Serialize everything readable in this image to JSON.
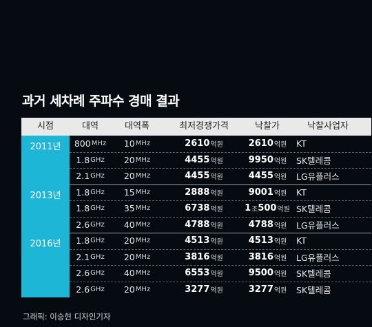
{
  "title": "과거 세차례 주파수 경매 결과",
  "headers": [
    "시점",
    "대역",
    "대역폭",
    "최저경쟁가격",
    "낙찰가",
    "낙찰사업자"
  ],
  "groups": [
    {
      "year": "2011년",
      "rows": [
        {
          "band": "800",
          "band_unit": "MHz",
          "width": "10",
          "width_unit": "MHz",
          "min_price": "2610",
          "price_unit": "억원",
          "winning_prefix": "",
          "winning_prefix_unit": "",
          "winning": "2610",
          "winning_unit": "억원",
          "bidder": "KT"
        },
        {
          "band": "1.8",
          "band_unit": "GHz",
          "width": "20",
          "width_unit": "MHz",
          "min_price": "4455",
          "price_unit": "억원",
          "winning_prefix": "",
          "winning_prefix_unit": "",
          "winning": "9950",
          "winning_unit": "억원",
          "bidder": "SK텔레콤"
        },
        {
          "band": "2.1",
          "band_unit": "GHz",
          "width": "20",
          "width_unit": "MHz",
          "min_price": "4455",
          "price_unit": "억원",
          "winning_prefix": "",
          "winning_prefix_unit": "",
          "winning": "4455",
          "winning_unit": "억원",
          "bidder": "LG유플러스"
        }
      ]
    },
    {
      "year": "2013년",
      "rows": [
        {
          "band": "1.8",
          "band_unit": "GHz",
          "width": "15",
          "width_unit": "MHz",
          "min_price": "2888",
          "price_unit": "억원",
          "winning_prefix": "",
          "winning_prefix_unit": "",
          "winning": "9001",
          "winning_unit": "억원",
          "bidder": "KT"
        },
        {
          "band": "1.8",
          "band_unit": "GHz",
          "width": "35",
          "width_unit": "MHz",
          "min_price": "6738",
          "price_unit": "억원",
          "winning_prefix": "1",
          "winning_prefix_unit": "조",
          "winning": "500",
          "winning_unit": "억원",
          "bidder": "SK텔레콤"
        },
        {
          "band": "2.6",
          "band_unit": "GHz",
          "width": "40",
          "width_unit": "MHz",
          "min_price": "4788",
          "price_unit": "억원",
          "winning_prefix": "",
          "winning_prefix_unit": "",
          "winning": "4788",
          "winning_unit": "억원",
          "bidder": "LG유플러스"
        }
      ]
    },
    {
      "year": "2016년",
      "rows": [
        {
          "band": "1.8",
          "band_unit": "GHz",
          "width": "20",
          "width_unit": "MHz",
          "min_price": "4513",
          "price_unit": "억원",
          "winning_prefix": "",
          "winning_prefix_unit": "",
          "winning": "4513",
          "winning_unit": "억원",
          "bidder": "KT"
        },
        {
          "band": "2.1",
          "band_unit": "GHz",
          "width": "20",
          "width_unit": "MHz",
          "min_price": "3816",
          "price_unit": "억원",
          "winning_prefix": "",
          "winning_prefix_unit": "",
          "winning": "3816",
          "winning_unit": "억원",
          "bidder": "LG유플러스"
        },
        {
          "band": "2.6",
          "band_unit": "GHz",
          "width": "40",
          "width_unit": "MHz",
          "min_price": "6553",
          "price_unit": "억원",
          "winning_prefix": "",
          "winning_prefix_unit": "",
          "winning": "9500",
          "winning_unit": "억원",
          "bidder": "SK텔레콤"
        },
        {
          "band": "2.6",
          "band_unit": "GHz",
          "width": "20",
          "width_unit": "MHz",
          "min_price": "3277",
          "price_unit": "억원",
          "winning_prefix": "",
          "winning_prefix_unit": "",
          "winning": "3277",
          "winning_unit": "억원",
          "bidder": "SK텔레콤"
        }
      ]
    }
  ],
  "credit": "그래픽: 이승현 디자인기자",
  "colors": {
    "background": "#050b10",
    "year_cell": "#1eb6d6",
    "header_bar": "#e9e9e9",
    "wave": "#3fa8d6"
  }
}
